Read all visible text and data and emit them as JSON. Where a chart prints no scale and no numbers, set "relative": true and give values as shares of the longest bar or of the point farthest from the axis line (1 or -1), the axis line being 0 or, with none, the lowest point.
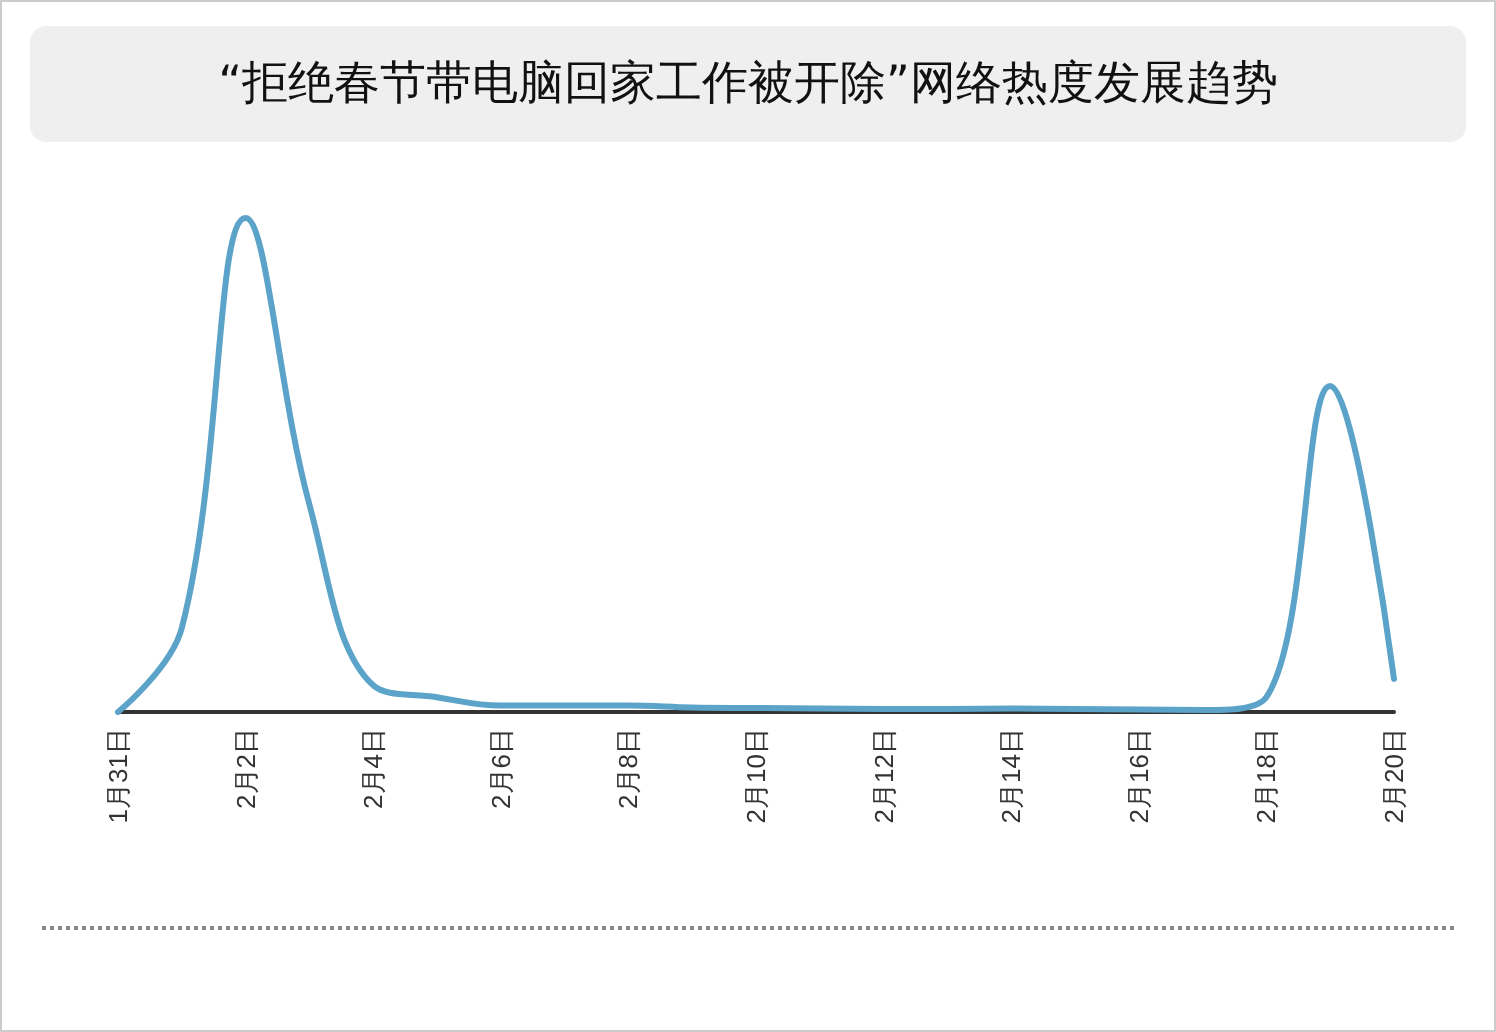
{
  "chart_data": {
    "type": "line",
    "title": "“拒绝春节带电脑回家工作被开除”网络热度发展趋势",
    "relative": true,
    "categories": [
      "1月31日",
      null,
      "2月2日",
      null,
      "2月4日",
      null,
      "2月6日",
      null,
      "2月8日",
      null,
      "2月10日",
      null,
      "2月12日",
      null,
      "2月14日",
      null,
      "2月16日",
      null,
      "2月18日",
      null,
      "2月20日"
    ],
    "series": [
      {
        "color": "#5ba3c9",
        "values": [
          0,
          0.17,
          1,
          0.42,
          0.054,
          0.03,
          0.013,
          0.013,
          0.013,
          0.009,
          0.008,
          0.007,
          0.006,
          0.006,
          0.007,
          0.006,
          0.005,
          0.004,
          0.03,
          0.66,
          0.067
        ]
      }
    ],
    "grid": false,
    "marker": "none",
    "line_style": "solid"
  }
}
